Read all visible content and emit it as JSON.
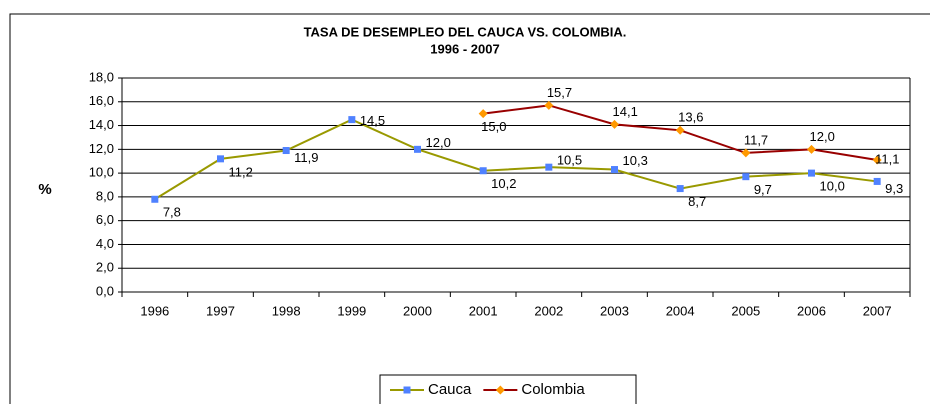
{
  "chart_data": {
    "type": "line",
    "title": "TASA DE DESEMPLEO DEL CAUCA VS. COLOMBIA.",
    "subtitle": "1996 - 2007",
    "y_label": "%",
    "categories": [
      "1996",
      "1997",
      "1998",
      "1999",
      "2000",
      "2001",
      "2002",
      "2003",
      "2004",
      "2005",
      "2006",
      "2007"
    ],
    "series": [
      {
        "name": "Cauca",
        "color": "#999900",
        "marker_color": "#4f81ff",
        "marker": "square",
        "values": [
          7.8,
          11.2,
          11.9,
          14.5,
          12.0,
          10.2,
          10.5,
          10.3,
          8.7,
          9.7,
          10.0,
          9.3
        ],
        "value_labels": [
          "7,8",
          "11,2",
          "11,9",
          "14,5",
          "12,0",
          "10,2",
          "10,5",
          "10,3",
          "8,7",
          "9,7",
          "10,0",
          "9,3"
        ]
      },
      {
        "name": "Colombia",
        "color": "#990000",
        "marker_color": "#ff9900",
        "marker": "diamond",
        "values": [
          null,
          null,
          null,
          null,
          null,
          15.0,
          15.7,
          14.1,
          13.6,
          11.7,
          12.0,
          11.1
        ],
        "value_labels": [
          null,
          null,
          null,
          null,
          null,
          "15,0",
          "15,7",
          "14,1",
          "13,6",
          "11,7",
          "12,0",
          "11,1"
        ]
      }
    ],
    "ylim": [
      0,
      18
    ],
    "yticks": [
      {
        "value": 0,
        "label": "0,0"
      },
      {
        "value": 2,
        "label": "2,0"
      },
      {
        "value": 4,
        "label": "4,0"
      },
      {
        "value": 6,
        "label": "6,0"
      },
      {
        "value": 8,
        "label": "8,0"
      },
      {
        "value": 10,
        "label": "10,0"
      },
      {
        "value": 12,
        "label": "12,0"
      },
      {
        "value": 14,
        "label": "14,0"
      },
      {
        "value": 16,
        "label": "16,0"
      },
      {
        "value": 18,
        "label": "18,0"
      }
    ],
    "grid": true,
    "legend": "bottom"
  }
}
